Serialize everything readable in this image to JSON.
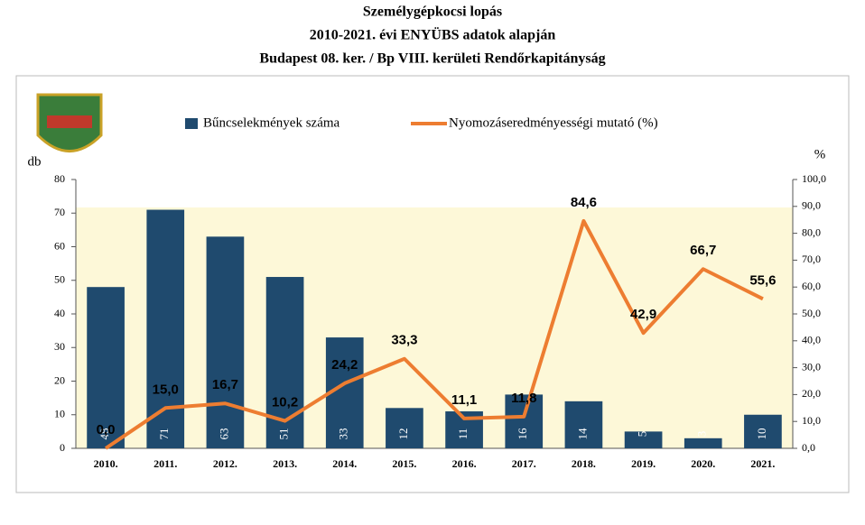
{
  "chart_data": {
    "type": "bar",
    "title": [
      "Személygépkocsi lopás",
      "2010-2021. évi ENYÜBS adatok alapján",
      "Budapest 08. ker.  /  Bp VIII. kerületi Rendőrkapitányság"
    ],
    "y_label": "db",
    "y2_label": "%",
    "categories": [
      "2010.",
      "2011.",
      "2012.",
      "2013.",
      "2014.",
      "2015.",
      "2016.",
      "2017.",
      "2018.",
      "2019.",
      "2020.",
      "2021."
    ],
    "series": [
      {
        "name": "Bűncselekmények száma",
        "type": "bar",
        "color": "#1f4a6e",
        "values": [
          48,
          71,
          63,
          51,
          33,
          12,
          11,
          16,
          14,
          5,
          3,
          10
        ]
      },
      {
        "name": "Nyomozáseredményességi mutató (%)",
        "type": "line",
        "axis": "y2",
        "color": "#ed7d31",
        "values": [
          0,
          15,
          16.7,
          10.2,
          24.2,
          33.3,
          11.1,
          11.8,
          84.6,
          42.9,
          66.7,
          55.6
        ],
        "value_labels": [
          "0,0",
          "15,0",
          "16,7",
          "10,2",
          "24,2",
          "33,3",
          "11,1",
          "11,8",
          "84,6",
          "42,9",
          "66,7",
          "55,6"
        ]
      }
    ],
    "ylim": [
      0,
      80
    ],
    "yticks": [
      0,
      10,
      20,
      30,
      40,
      50,
      60,
      70,
      80
    ],
    "y2lim": [
      0,
      100
    ],
    "y2ticks": [
      {
        "value": 0,
        "label": "0,0"
      },
      {
        "value": 10,
        "label": "10,0"
      },
      {
        "value": 20,
        "label": "20,0"
      },
      {
        "value": 30,
        "label": "30,0"
      },
      {
        "value": 40,
        "label": "40,0"
      },
      {
        "value": 50,
        "label": "50,0"
      },
      {
        "value": 60,
        "label": "60,0"
      },
      {
        "value": 70,
        "label": "70,0"
      },
      {
        "value": 80,
        "label": "80,0"
      },
      {
        "value": 90,
        "label": "90,0"
      },
      {
        "value": 100,
        "label": "100,0"
      }
    ],
    "grid": false
  }
}
